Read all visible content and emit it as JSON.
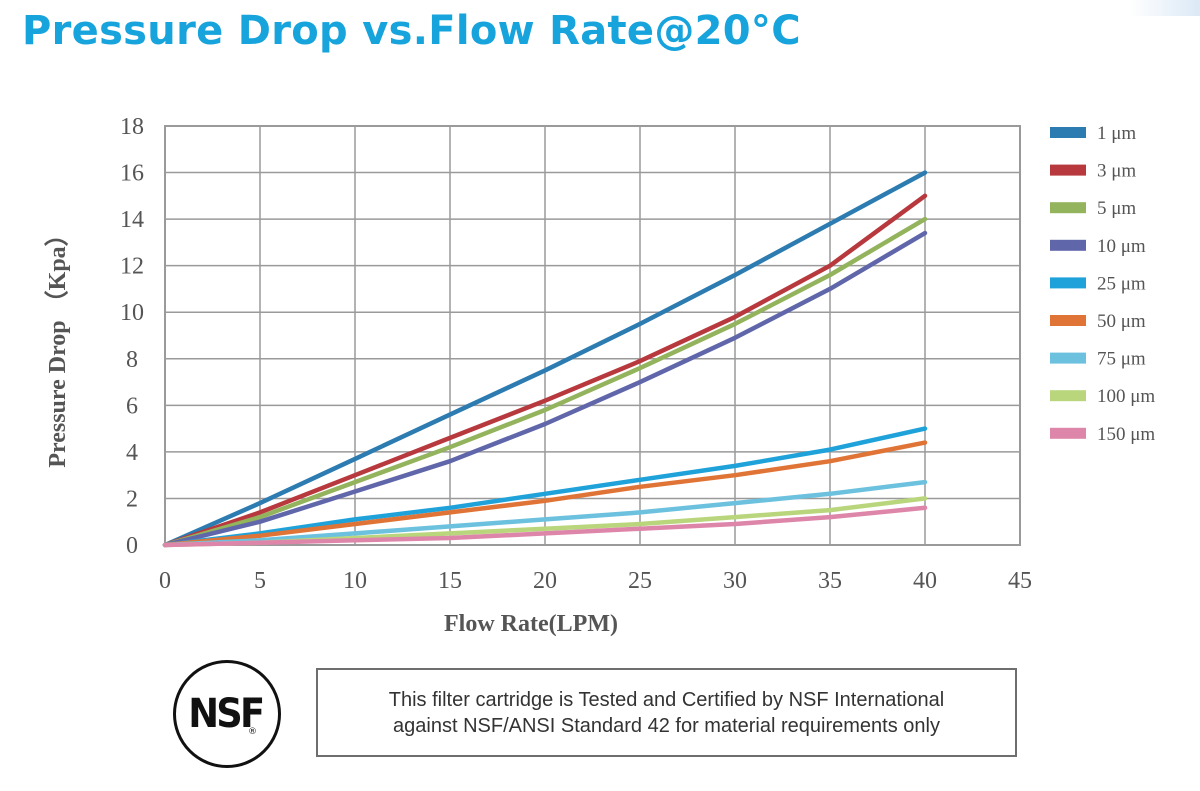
{
  "page": {
    "title": "Pressure Drop vs.Flow Rate@20°C"
  },
  "certification": {
    "logo_text": "NSF",
    "logo_mark": "®",
    "line1": "This filter cartridge is Tested and Certified by NSF International",
    "line2": "against NSF/ANSI Standard 42 for material requirements only"
  },
  "colors": {
    "title": "#17a3dc",
    "grid": "#9a9a9a",
    "axis_text": "#555555"
  },
  "chart_data": {
    "type": "line",
    "title": "Pressure Drop vs.Flow Rate@20°C",
    "xlabel": "Flow Rate(LPM)",
    "ylabel": "Pressure Drop （Kpa）",
    "xlim": [
      0,
      45
    ],
    "ylim": [
      0,
      18
    ],
    "xticks": [
      0,
      5,
      10,
      15,
      20,
      25,
      30,
      35,
      40,
      45
    ],
    "yticks": [
      0,
      2,
      4,
      6,
      8,
      10,
      12,
      14,
      16,
      18
    ],
    "grid": true,
    "legend": "right",
    "x": [
      0,
      5,
      10,
      15,
      20,
      25,
      30,
      35,
      40
    ],
    "series": [
      {
        "name": "1 μm",
        "color": "#2c7bb1",
        "values": [
          0,
          1.8,
          3.7,
          5.6,
          7.5,
          9.5,
          11.6,
          13.8,
          16.0
        ]
      },
      {
        "name": "3 μm",
        "color": "#b8393d",
        "values": [
          0,
          1.4,
          3.0,
          4.6,
          6.2,
          7.9,
          9.8,
          12.0,
          15.0
        ]
      },
      {
        "name": "5 μm",
        "color": "#93b35c",
        "values": [
          0,
          1.2,
          2.7,
          4.2,
          5.8,
          7.6,
          9.5,
          11.6,
          14.0
        ]
      },
      {
        "name": "10 μm",
        "color": "#6066aa",
        "values": [
          0,
          1.0,
          2.3,
          3.6,
          5.2,
          7.0,
          8.9,
          11.0,
          13.4
        ]
      },
      {
        "name": "25 μm",
        "color": "#1ea2d9",
        "values": [
          0,
          0.5,
          1.1,
          1.6,
          2.2,
          2.8,
          3.4,
          4.1,
          5.0
        ]
      },
      {
        "name": "50 μm",
        "color": "#e07436",
        "values": [
          0,
          0.4,
          0.9,
          1.4,
          1.9,
          2.5,
          3.0,
          3.6,
          4.4
        ]
      },
      {
        "name": "75 μm",
        "color": "#6cc1de",
        "values": [
          0,
          0.2,
          0.5,
          0.8,
          1.1,
          1.4,
          1.8,
          2.2,
          2.7
        ]
      },
      {
        "name": "100 μm",
        "color": "#b9d67c",
        "values": [
          0,
          0.1,
          0.3,
          0.5,
          0.7,
          0.9,
          1.2,
          1.5,
          2.0
        ]
      },
      {
        "name": "150 μm",
        "color": "#de86aa",
        "values": [
          0,
          0.1,
          0.2,
          0.3,
          0.5,
          0.7,
          0.9,
          1.2,
          1.6
        ]
      }
    ]
  }
}
